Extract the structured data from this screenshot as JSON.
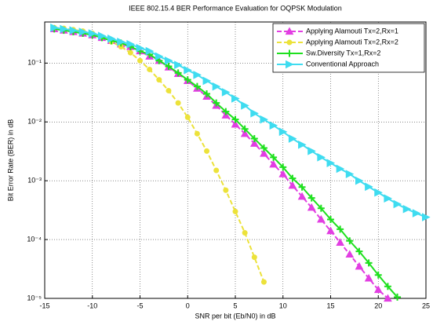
{
  "chart_data": {
    "type": "line",
    "title": "IEEE 802.15.4 BER Performance Evaluation for OQPSK Modulation",
    "x_label": "SNR per bit (Eb/N0) in dB",
    "y_label": "Bit Error Rate (BER) in dB",
    "x": [
      -14,
      -13,
      -12,
      -11,
      -10,
      -9,
      -8,
      -7,
      -6,
      -5,
      -4,
      -3,
      -2,
      -1,
      0,
      1,
      2,
      3,
      4,
      5,
      6,
      7,
      8,
      9,
      10,
      11,
      12,
      13,
      14,
      15,
      16,
      17,
      18,
      19,
      20,
      21,
      22,
      23,
      24,
      25
    ],
    "series": [
      {
        "name": "Applying Alamouti Tx=2,Rx=1",
        "color": "#e23ee2",
        "dash": true,
        "marker": "triangle",
        "values": [
          0.38,
          0.36,
          0.34,
          0.32,
          0.3,
          0.27,
          0.24,
          0.21,
          0.19,
          0.16,
          0.13,
          0.11,
          0.085,
          0.066,
          0.05,
          0.037,
          0.027,
          0.019,
          0.013,
          0.0091,
          0.0063,
          0.0043,
          0.0029,
          0.0019,
          0.0013,
          0.00083,
          0.00054,
          0.00035,
          0.00022,
          0.00014,
          8.9e-05,
          5.6e-05,
          3.5e-05,
          2.2e-05,
          1.4e-05,
          1e-05,
          null,
          null,
          null,
          null
        ]
      },
      {
        "name": "Applying Alamouti Tx=2,Rx=2",
        "color": "#ece23a",
        "dash": true,
        "marker": "circle",
        "values": [
          0.4,
          0.39,
          0.37,
          0.35,
          0.32,
          0.28,
          0.23,
          0.19,
          0.15,
          0.11,
          0.078,
          0.052,
          0.034,
          0.021,
          0.012,
          0.0063,
          0.0032,
          0.0015,
          0.00069,
          0.0003,
          0.00013,
          5e-05,
          1.9e-05,
          null,
          null,
          null,
          null,
          null,
          null,
          null,
          null,
          null,
          null,
          null,
          null,
          null,
          null,
          null,
          null,
          null
        ]
      },
      {
        "name": "Sw.Diversity Tx=1,Rx=2",
        "color": "#1ee01e",
        "dash": false,
        "marker": "plus",
        "values": [
          0.38,
          0.36,
          0.34,
          0.32,
          0.3,
          0.27,
          0.24,
          0.22,
          0.19,
          0.16,
          0.14,
          0.11,
          0.088,
          0.068,
          0.052,
          0.04,
          0.03,
          0.021,
          0.015,
          0.011,
          0.0076,
          0.0052,
          0.0036,
          0.0025,
          0.0017,
          0.0011,
          0.00078,
          0.00051,
          0.00034,
          0.00022,
          0.00015,
          9.5e-05,
          6.3e-05,
          4e-05,
          2.5e-05,
          1.6e-05,
          1.05e-05,
          null,
          null,
          null
        ]
      },
      {
        "name": "Conventional Approach",
        "color": "#3fdcf0",
        "dash": false,
        "marker": "triangle-right",
        "values": [
          0.4,
          0.38,
          0.36,
          0.34,
          0.32,
          0.29,
          0.26,
          0.23,
          0.21,
          0.18,
          0.16,
          0.13,
          0.11,
          0.093,
          0.076,
          0.063,
          0.05,
          0.04,
          0.032,
          0.025,
          0.019,
          0.014,
          0.011,
          0.0087,
          0.0068,
          0.0052,
          0.0041,
          0.0032,
          0.0025,
          0.002,
          0.0016,
          0.0013,
          0.001,
          0.00079,
          0.00063,
          0.0005,
          0.0004,
          0.00033,
          0.00028,
          0.00024
        ]
      }
    ],
    "xlim": [
      -15,
      25
    ],
    "xticks": [
      -15,
      -10,
      -5,
      0,
      5,
      10,
      15,
      20,
      25
    ],
    "ylim": [
      1e-05,
      0.5
    ],
    "y_log": true,
    "yticks": [
      {
        "value": 1e-05,
        "label": "10⁻⁵"
      },
      {
        "value": 0.0001,
        "label": "10⁻⁴"
      },
      {
        "value": 0.001,
        "label": "10⁻³"
      },
      {
        "value": 0.01,
        "label": "10⁻²"
      },
      {
        "value": 0.1,
        "label": "10⁻¹"
      }
    ],
    "grid": true,
    "legend": "upper right"
  }
}
